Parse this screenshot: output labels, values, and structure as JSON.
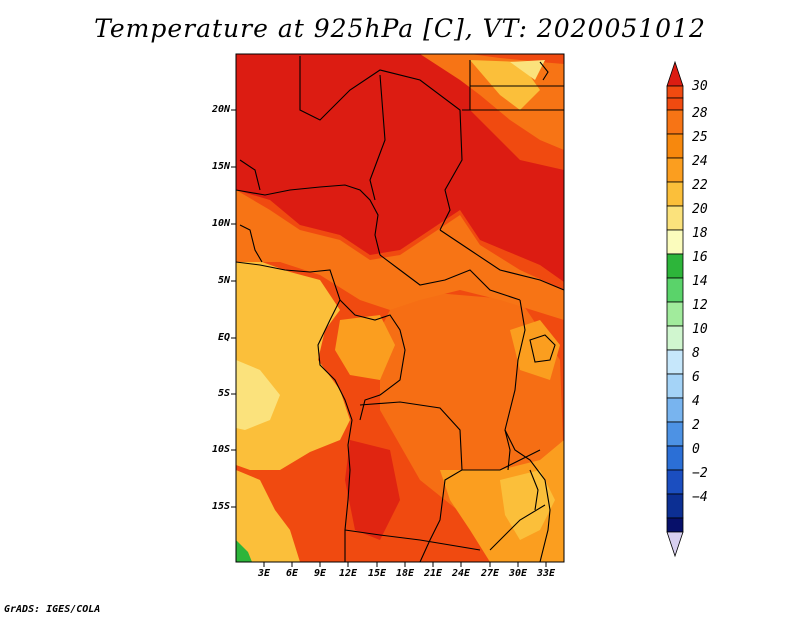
{
  "title": "Temperature at 925hPa [C], VT: 2020051012",
  "credit": "GrADS: IGES/COLA",
  "map": {
    "lat_labels": [
      "20N",
      "15N",
      "10N",
      "5N",
      "EQ",
      "5S",
      "10S",
      "15S"
    ],
    "lon_labels": [
      "3E",
      "6E",
      "9E",
      "12E",
      "15E",
      "18E",
      "21E",
      "24E",
      "27E",
      "30E",
      "33E"
    ]
  },
  "colorbar": {
    "labels": [
      "30",
      "28",
      "25",
      "24",
      "22",
      "20",
      "18",
      "16",
      "14",
      "12",
      "10",
      "8",
      "6",
      "4",
      "2",
      "0",
      "−2",
      "−4"
    ],
    "colors": [
      "#dc1c12",
      "#f04a10",
      "#f77415",
      "#fb9e1f",
      "#fbbf3a",
      "#fbe27c",
      "#fbfcbd",
      "#2db53a",
      "#5ad36a",
      "#a1eb9c",
      "#d0f6cf",
      "#c6e7fb",
      "#a4d3f7",
      "#78b4ef",
      "#4d92e4",
      "#2b6fd6",
      "#1b4ec0",
      "#0c2f93",
      "#07106a",
      "#d8d0f0"
    ]
  }
}
